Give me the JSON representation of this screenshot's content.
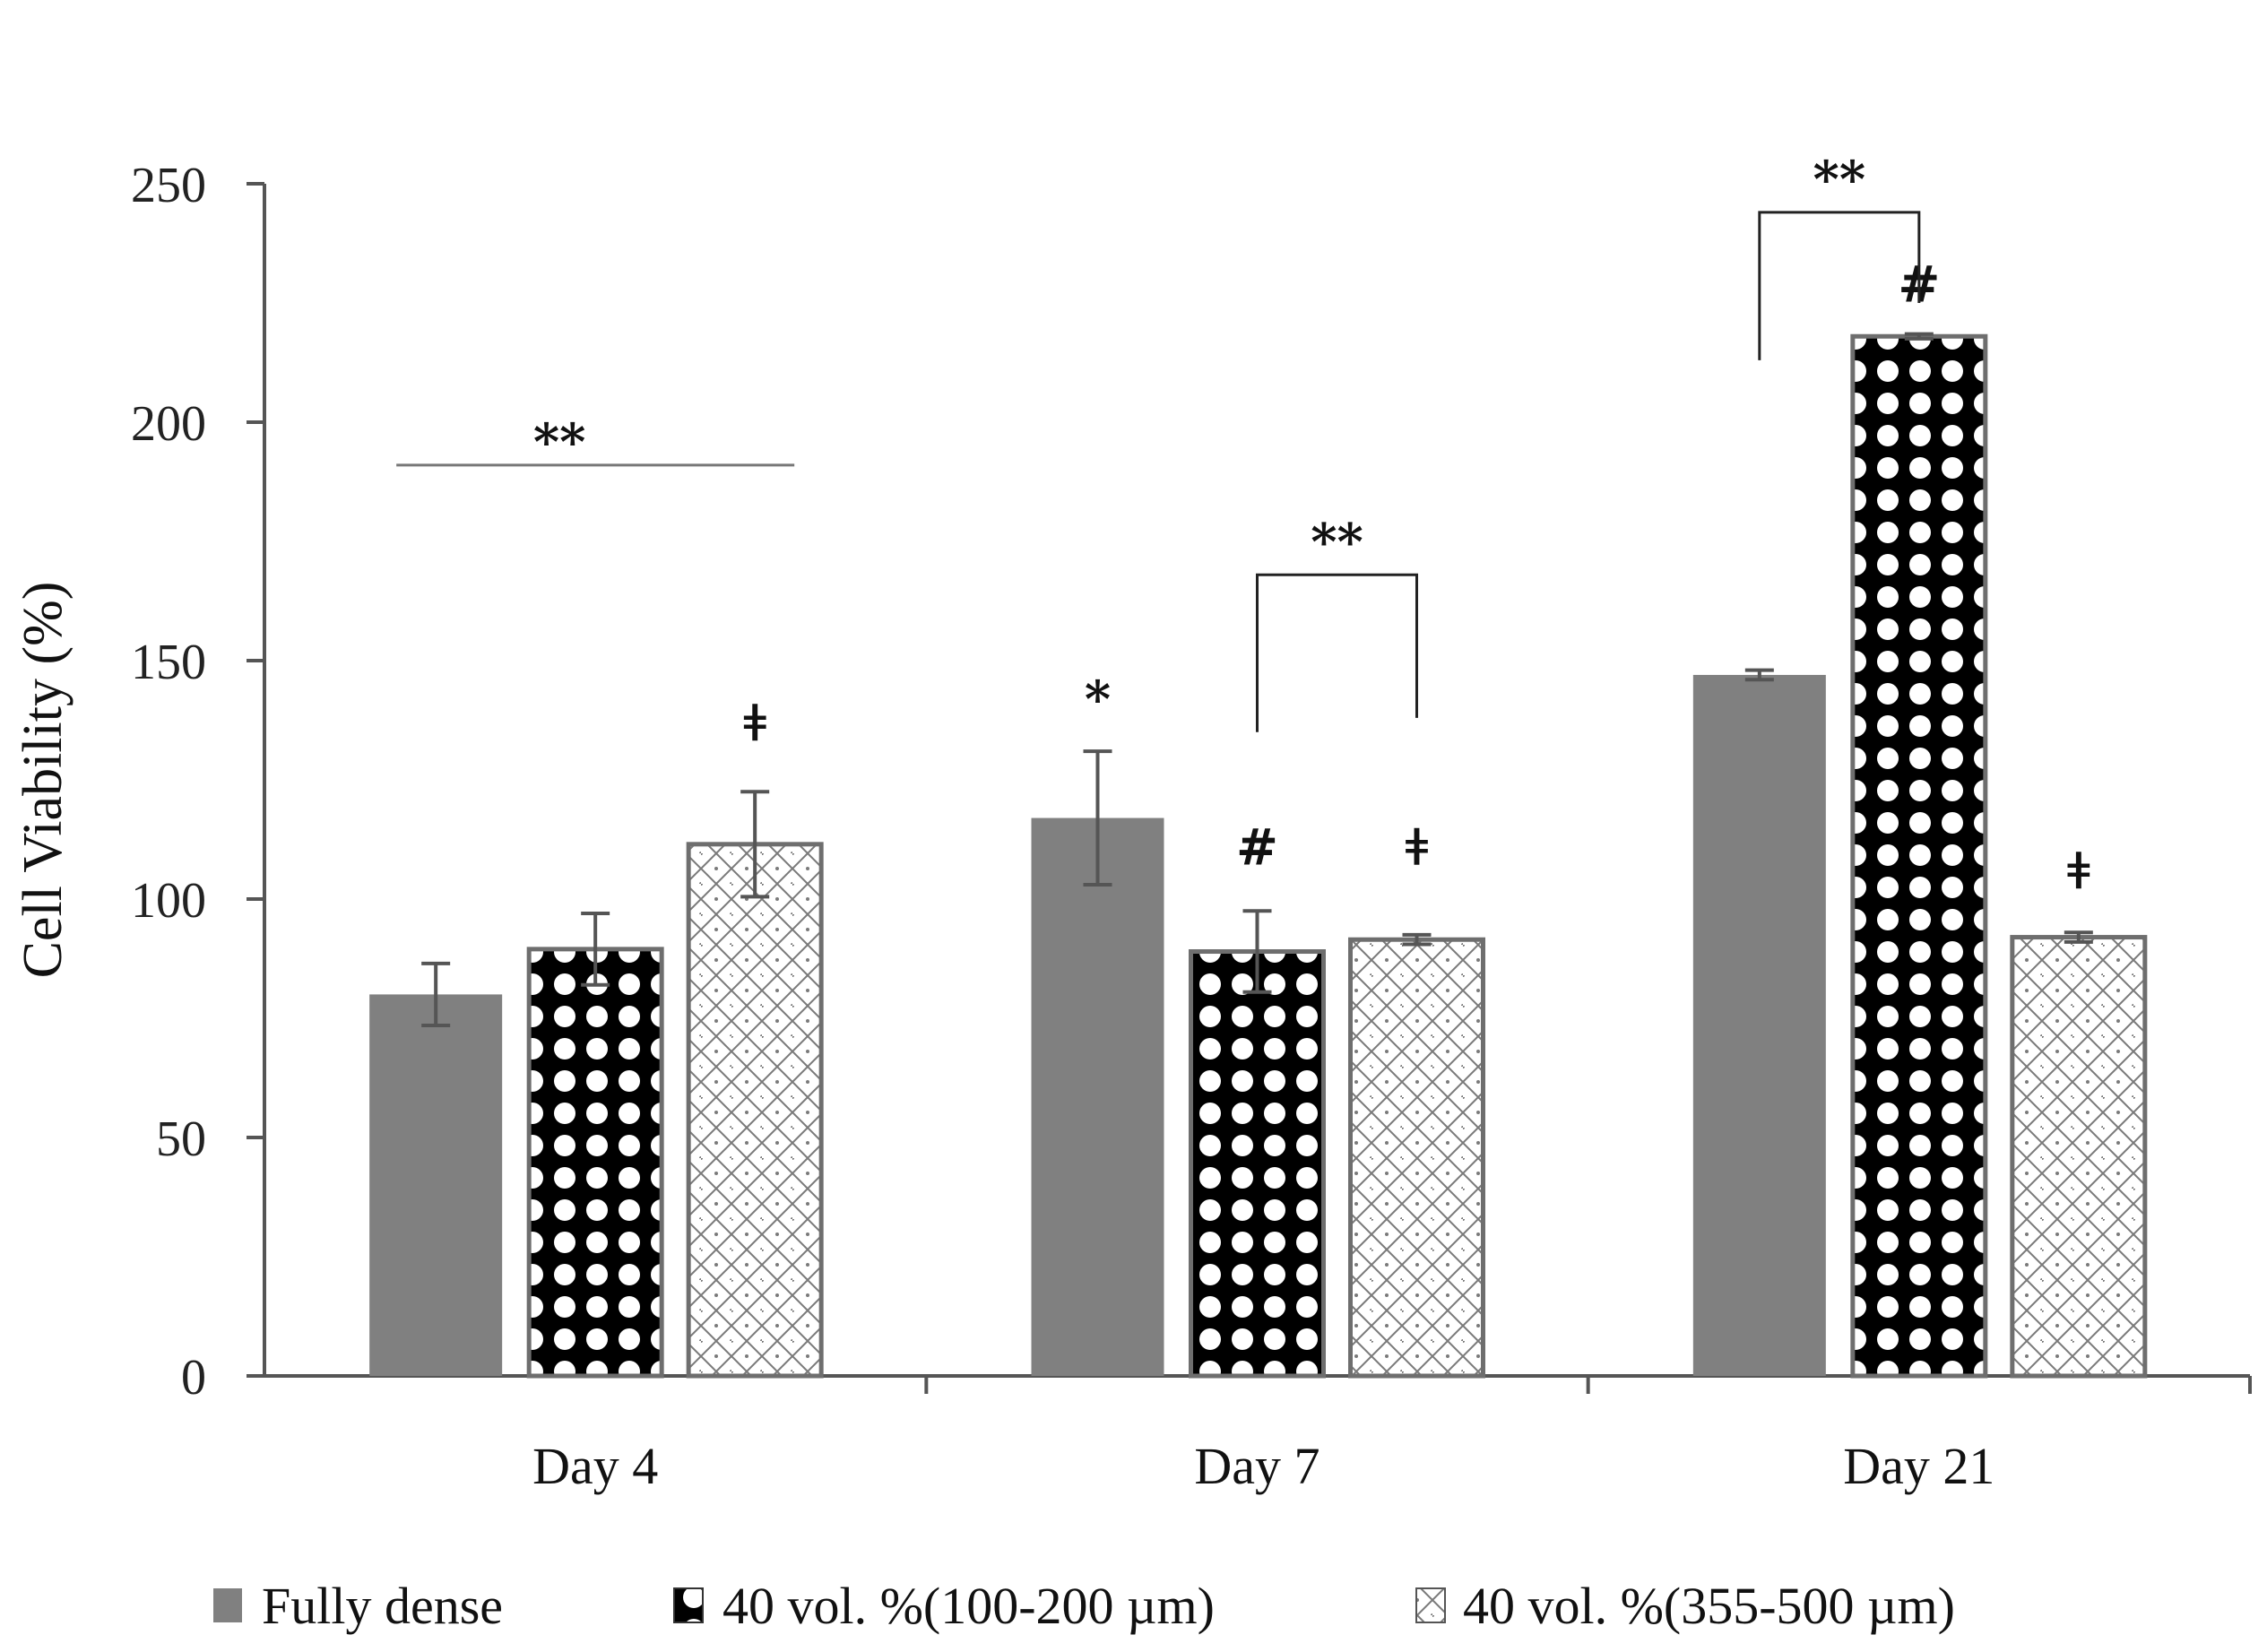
{
  "chart_data": {
    "type": "bar",
    "title": "",
    "xlabel": "",
    "ylabel": "Cell Viability (%)",
    "ylim": [
      0,
      250
    ],
    "yticks": [
      0,
      50,
      100,
      150,
      200,
      250
    ],
    "ytick_labels": [
      "0",
      "50",
      "100",
      "150",
      "200",
      "250"
    ],
    "grid": false,
    "legend_position": "bottom",
    "categories": [
      "Day 4",
      "Day 7",
      "Day 21"
    ],
    "series": [
      {
        "name": "Fully dense",
        "pattern": "solid-gray",
        "values": [
          80,
          117,
          147
        ],
        "errors": [
          6.5,
          14,
          1
        ]
      },
      {
        "name": "40 vol. %(100-200 µm)",
        "pattern": "black-white-dots",
        "values": [
          89.5,
          89,
          218
        ],
        "errors": [
          7.5,
          8.5,
          0.5
        ]
      },
      {
        "name": "40 vol. %(355-500 µm)",
        "pattern": "white-lattice",
        "values": [
          111.5,
          91.5,
          92
        ],
        "errors": [
          11,
          1,
          1
        ]
      }
    ],
    "annotations": [
      {
        "text": "**",
        "type": "line",
        "category_from": 0,
        "series_from": 0,
        "category_to": 0,
        "series_to": 2,
        "y": 191,
        "label_y": 196
      },
      {
        "text": "ǂ",
        "type": "marker",
        "category": 0,
        "series": 2,
        "y": 137
      },
      {
        "text": "*",
        "type": "marker",
        "category": 1,
        "series": 0,
        "y": 142
      },
      {
        "text": "#",
        "type": "marker",
        "category": 1,
        "series": 1,
        "y": 111
      },
      {
        "text": "ǂ",
        "type": "marker",
        "category": 1,
        "series": 2,
        "y": 111
      },
      {
        "text": "**",
        "type": "bracket",
        "category_from": 1,
        "series_from": 1,
        "category_to": 1,
        "series_to": 2,
        "y": 168,
        "left_drop_y": 135,
        "right_drop_y": 138,
        "label_y": 175
      },
      {
        "text": "#",
        "type": "marker",
        "category": 2,
        "series": 1,
        "y": 229
      },
      {
        "text": "ǂ",
        "type": "marker",
        "category": 2,
        "series": 2,
        "y": 106
      },
      {
        "text": "**",
        "type": "bracket",
        "category_from": 2,
        "series_from": 0,
        "category_to": 2,
        "series_to": 1,
        "y": 244,
        "left_drop_y": 213,
        "right_drop_y": 225,
        "label_y": 251
      }
    ]
  },
  "colors": {
    "axis": "#555555",
    "fully_dense": "#808080",
    "bar_outline": "#6e6e6e",
    "pattern_dark": "#000000",
    "pattern_light": "#ffffff",
    "lattice_line": "#7a7a7a",
    "text": "#111111"
  }
}
